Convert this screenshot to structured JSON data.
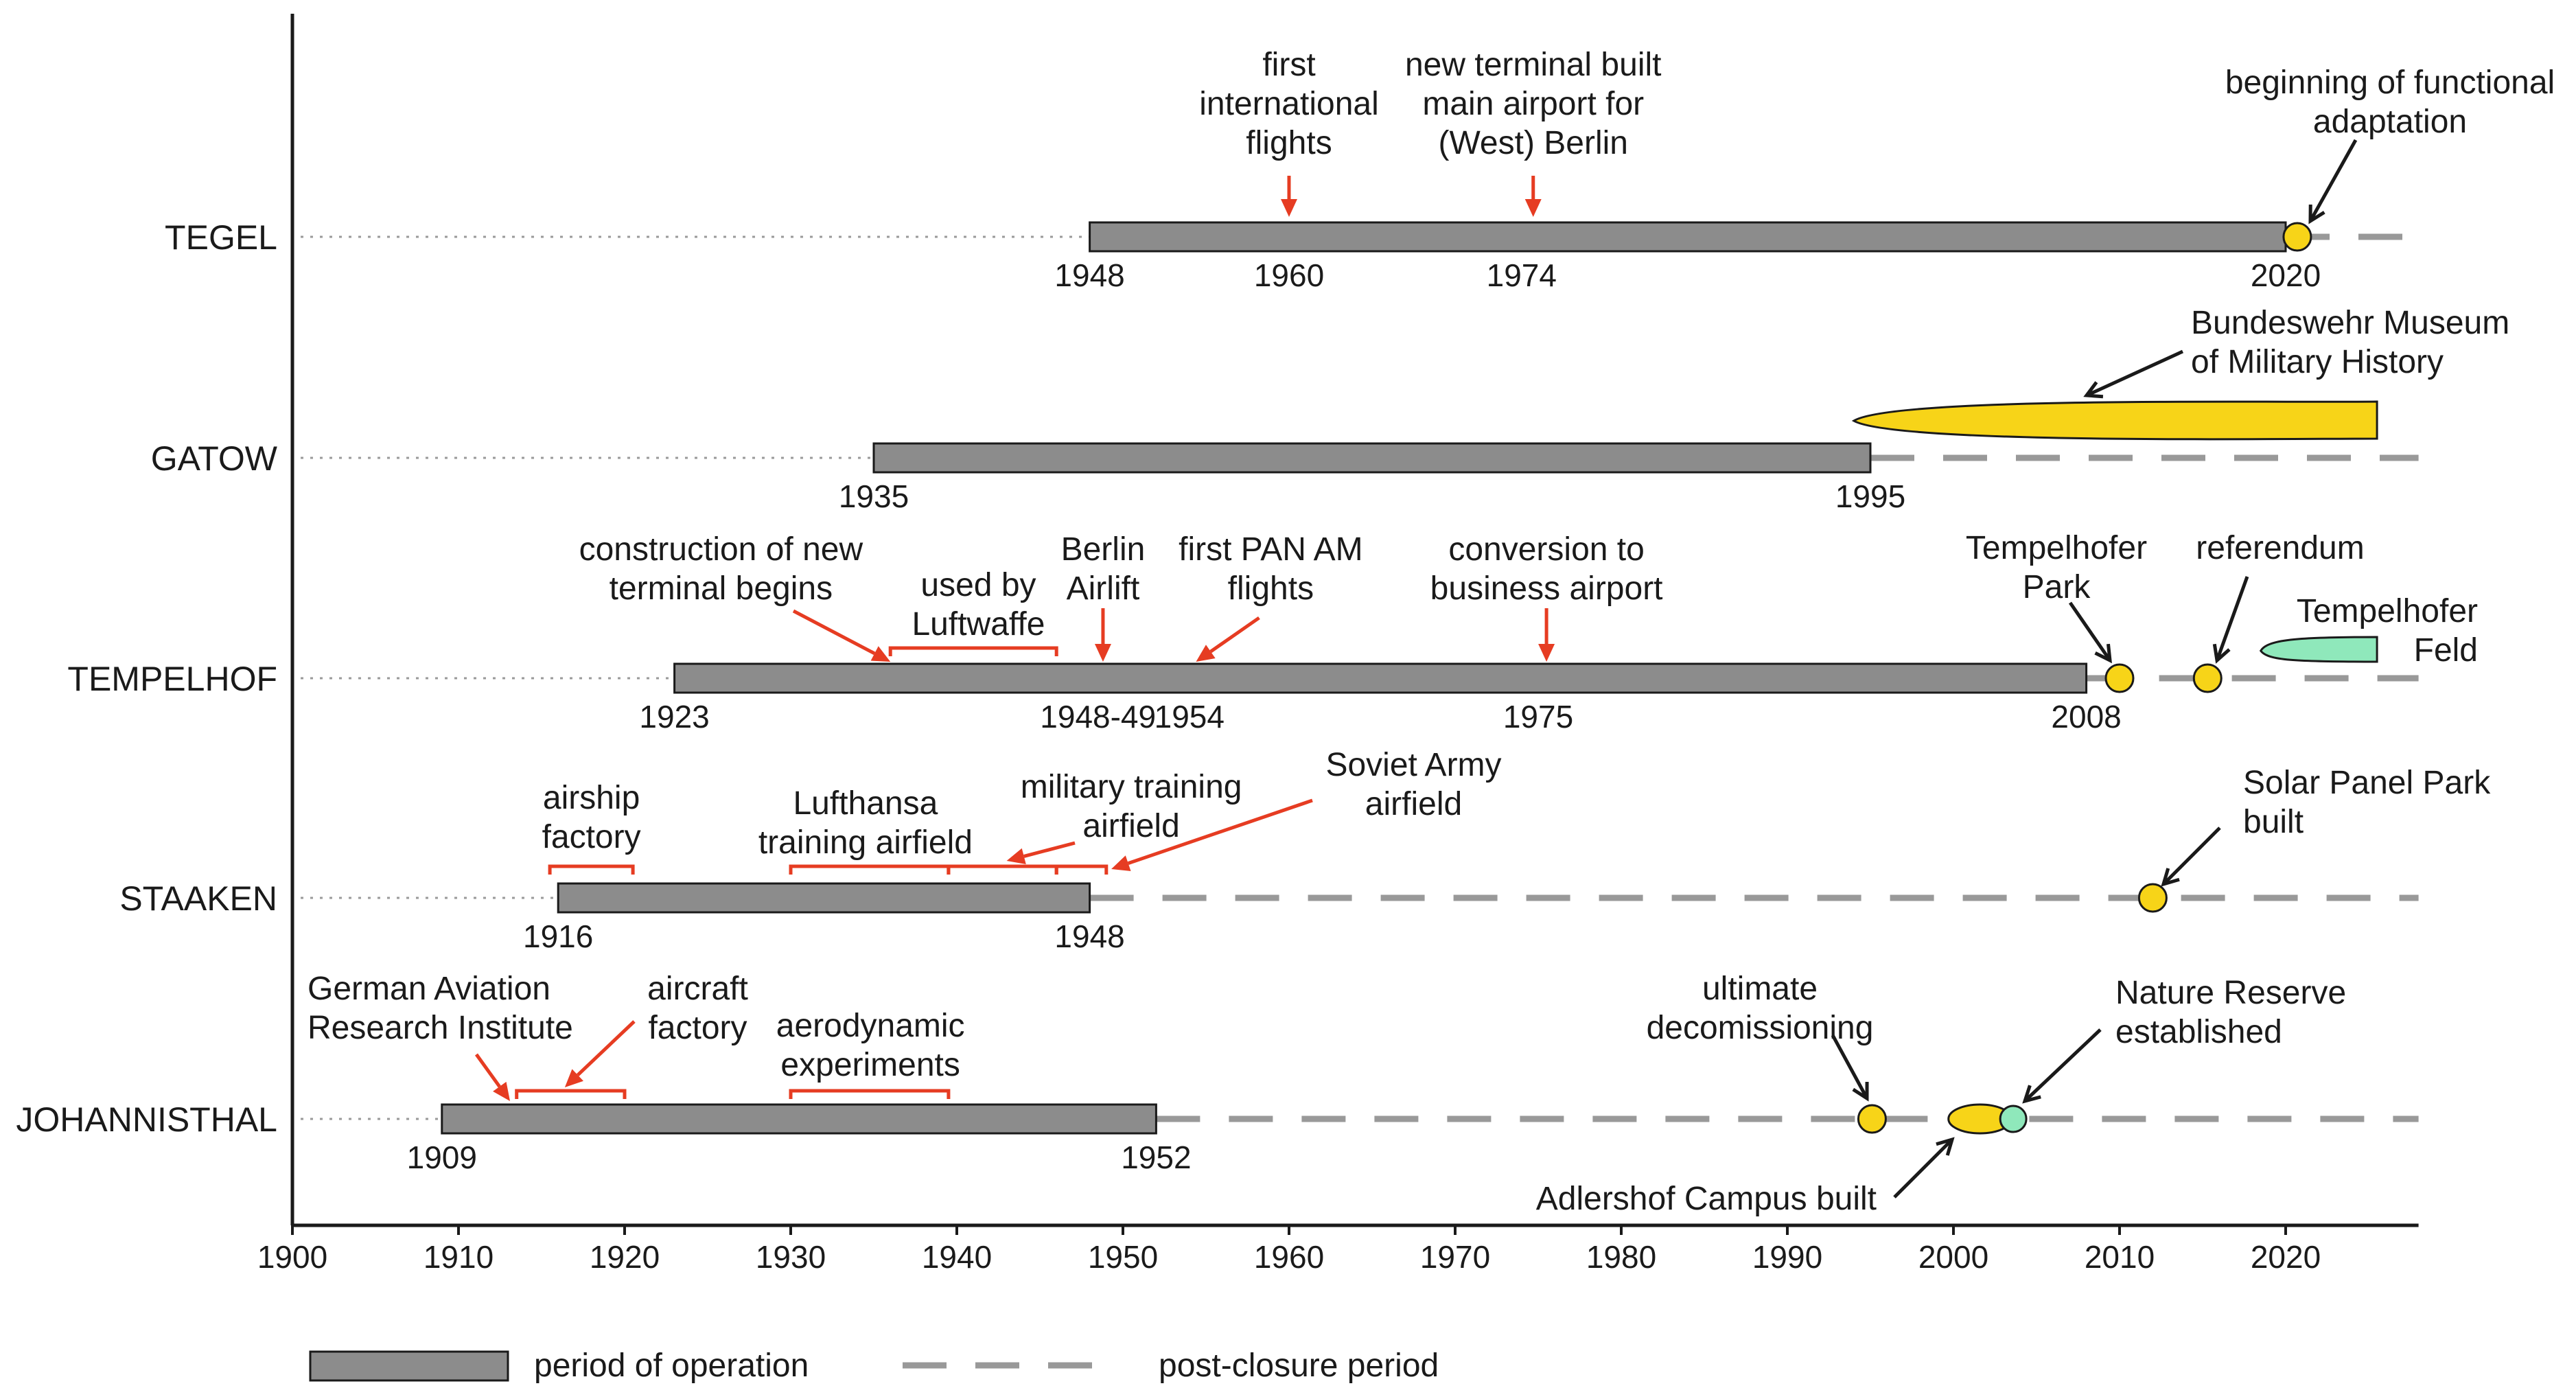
{
  "chart_data": {
    "type": "timeline",
    "title": "",
    "x_axis": {
      "range": [
        1900,
        2028
      ],
      "ticks": [
        1900,
        1910,
        1920,
        1930,
        1940,
        1950,
        1960,
        1970,
        1980,
        1990,
        2000,
        2010,
        2020
      ]
    },
    "legend": {
      "operation_label": "period of operation",
      "post_closure_label": "post-closure period",
      "position": "bottom-left"
    },
    "airports": [
      {
        "name": "TEGEL",
        "operation": [
          1948,
          2020
        ],
        "post_closure": [
          2020,
          2028
        ],
        "year_labels": [
          {
            "year": 1948,
            "text": "1948"
          },
          {
            "year": 1960,
            "text": "1960"
          },
          {
            "year": 1974,
            "text": "1974"
          },
          {
            "year": 2020,
            "text": "2020"
          }
        ],
        "red_events": [
          {
            "year": 1960,
            "lines": [
              "first",
              "international",
              "flights"
            ]
          },
          {
            "year": 1974,
            "lines": [
              "new terminal built",
              "main airport for",
              "(West) Berlin"
            ]
          }
        ],
        "brackets": [],
        "markers": [
          {
            "kind": "circle",
            "color": "yellow",
            "year": 2020.7
          }
        ],
        "black_notes": [
          {
            "lines": [
              "beginning of functional",
              "adaptation"
            ]
          }
        ]
      },
      {
        "name": "GATOW",
        "operation": [
          1935,
          1995
        ],
        "post_closure": [
          1995,
          2028
        ],
        "year_labels": [
          {
            "year": 1935,
            "text": "1935"
          },
          {
            "year": 1995,
            "text": "1995"
          }
        ],
        "red_events": [],
        "brackets": [],
        "markers": [
          {
            "kind": "band",
            "color": "yellow",
            "from": 1994,
            "to": 2025.5
          }
        ],
        "black_notes": [
          {
            "lines": [
              "Bundeswehr Museum",
              "of Military History"
            ]
          }
        ]
      },
      {
        "name": "TEMPELHOF",
        "operation": [
          1923,
          2008
        ],
        "post_closure": [
          2008,
          2028
        ],
        "year_labels": [
          {
            "year": 1923,
            "text": "1923"
          },
          {
            "year": 1948.5,
            "text": "1948-49"
          },
          {
            "year": 1954,
            "text": "1954"
          },
          {
            "year": 1975,
            "text": "1975"
          },
          {
            "year": 2008,
            "text": "2008"
          }
        ],
        "red_events": [
          {
            "year": 1936,
            "lines": [
              "construction of new",
              "terminal begins"
            ]
          },
          {
            "year": 1949,
            "lines": [
              "Berlin",
              "Airlift"
            ]
          },
          {
            "year": 1954,
            "lines": [
              "first PAN AM",
              "flights"
            ]
          },
          {
            "year": 1975,
            "lines": [
              "conversion to",
              "business airport"
            ]
          }
        ],
        "brackets": [
          {
            "from": 1936,
            "to": 1946,
            "lines": [
              "used by",
              "Luftwaffe"
            ]
          }
        ],
        "markers": [
          {
            "kind": "circle",
            "color": "yellow",
            "year": 2010
          },
          {
            "kind": "circle",
            "color": "yellow",
            "year": 2015.3
          },
          {
            "kind": "band",
            "color": "green",
            "from": 2018.5,
            "to": 2025.5
          }
        ],
        "black_notes": [
          {
            "lines": [
              "Tempelhofer",
              "Park"
            ]
          },
          {
            "lines": [
              "referendum"
            ]
          },
          {
            "lines": [
              "Tempelhofer",
              "Feld"
            ]
          }
        ]
      },
      {
        "name": "STAAKEN",
        "operation": [
          1916,
          1948
        ],
        "post_closure": [
          1948,
          2028
        ],
        "year_labels": [
          {
            "year": 1916,
            "text": "1916"
          },
          {
            "year": 1948,
            "text": "1948"
          }
        ],
        "red_events": [
          {
            "year": 1946.5,
            "lines": [
              "Soviet Army",
              "airfield"
            ]
          }
        ],
        "brackets": [
          {
            "from": 1915.5,
            "to": 1920.5,
            "lines": [
              "airship",
              "factory"
            ]
          },
          {
            "from": 1930,
            "to": 1939.5,
            "lines": [
              "Lufthansa",
              "training airfield"
            ]
          },
          {
            "from": 1939.5,
            "to": 1946,
            "lines": [
              "military training",
              "airfield"
            ]
          },
          {
            "from": 1946,
            "to": 1949,
            "lines": []
          }
        ],
        "markers": [
          {
            "kind": "circle",
            "color": "yellow",
            "year": 2012
          }
        ],
        "black_notes": [
          {
            "lines": [
              "Solar Panel Park",
              "built"
            ]
          }
        ]
      },
      {
        "name": "JOHANNISTHAL",
        "operation": [
          1909,
          1952
        ],
        "post_closure": [
          1952,
          2028
        ],
        "year_labels": [
          {
            "year": 1909,
            "text": "1909"
          },
          {
            "year": 1952,
            "text": "1952"
          }
        ],
        "red_events": [
          {
            "year": 1913.5,
            "lines": [
              "German Aviation",
              "Research Institute"
            ]
          }
        ],
        "brackets": [
          {
            "from": 1913.5,
            "to": 1920,
            "lines": [
              "aircraft",
              "factory"
            ]
          },
          {
            "from": 1930,
            "to": 1939.5,
            "lines": [
              "aerodynamic",
              "experiments"
            ]
          }
        ],
        "markers": [
          {
            "kind": "circle",
            "color": "yellow",
            "year": 1995.1
          },
          {
            "kind": "band",
            "color": "yellow",
            "from": 1999.7,
            "to": 2003.5
          },
          {
            "kind": "circle",
            "color": "green",
            "year": 2003.6
          }
        ],
        "black_notes": [
          {
            "lines": [
              "ultimate",
              "decomissioning"
            ]
          },
          {
            "lines": [
              "Nature Reserve",
              "established"
            ]
          },
          {
            "lines": [
              "Adlershof Campus built"
            ]
          }
        ]
      }
    ]
  }
}
